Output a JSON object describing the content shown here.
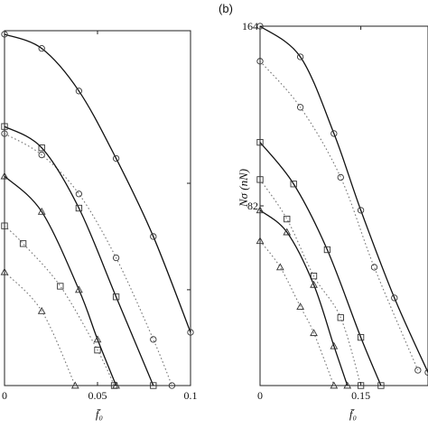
{
  "chart_data": [
    {
      "type": "line",
      "panel": "a",
      "panel_label": "",
      "xlabel": "f̄₀",
      "ylabel": "",
      "xlim": [
        0,
        0.1
      ],
      "ylim": [
        0,
        100
      ],
      "xticks": [
        0,
        0.05,
        0.1
      ],
      "xtick_labels": [
        "0",
        "0.05",
        "0.1"
      ],
      "grid": false,
      "series": [
        {
          "style": "solid",
          "marker": "circle",
          "x": [
            0,
            0.02,
            0.04,
            0.06,
            0.08,
            0.1
          ],
          "y": [
            99,
            95,
            83,
            64,
            42,
            15
          ]
        },
        {
          "style": "dotted",
          "marker": "circle",
          "x": [
            0,
            0.02,
            0.04,
            0.06,
            0.08,
            0.09
          ],
          "y": [
            71,
            65,
            54,
            36,
            13,
            0
          ]
        },
        {
          "style": "solid",
          "marker": "square",
          "x": [
            0,
            0.02,
            0.04,
            0.06,
            0.08
          ],
          "y": [
            73,
            67,
            50,
            25,
            0
          ]
        },
        {
          "style": "dotted",
          "marker": "square",
          "x": [
            0,
            0.01,
            0.03,
            0.05,
            0.059
          ],
          "y": [
            45,
            40,
            28,
            10,
            0
          ]
        },
        {
          "style": "solid",
          "marker": "triangle",
          "x": [
            0,
            0.02,
            0.04,
            0.05,
            0.06
          ],
          "y": [
            59,
            49,
            27,
            13,
            0
          ]
        },
        {
          "style": "dotted",
          "marker": "triangle",
          "x": [
            0,
            0.02,
            0.038
          ],
          "y": [
            32,
            21,
            0
          ]
        }
      ]
    },
    {
      "type": "line",
      "panel": "b",
      "panel_label": "(b)",
      "xlabel": "f̄₀",
      "ylabel": "Nσ (nN)",
      "xlim": [
        0,
        0.25
      ],
      "ylim": [
        0,
        164
      ],
      "xticks": [
        0,
        0.15
      ],
      "xtick_labels": [
        "0",
        "0.15"
      ],
      "yticks": [
        82,
        164
      ],
      "ytick_labels": [
        "82",
        "164"
      ],
      "grid": false,
      "series": [
        {
          "style": "solid",
          "marker": "circle",
          "x": [
            0,
            0.06,
            0.11,
            0.15,
            0.2,
            0.25
          ],
          "y": [
            164,
            150,
            115,
            80,
            40,
            6
          ]
        },
        {
          "style": "dotted",
          "marker": "circle",
          "x": [
            0,
            0.06,
            0.12,
            0.17,
            0.235
          ],
          "y": [
            148,
            127,
            95,
            54,
            7
          ]
        },
        {
          "style": "solid",
          "marker": "square",
          "x": [
            0,
            0.05,
            0.1,
            0.15,
            0.18
          ],
          "y": [
            111,
            92,
            62,
            22,
            0
          ]
        },
        {
          "style": "dotted",
          "marker": "square",
          "x": [
            0,
            0.04,
            0.08,
            0.12,
            0.15
          ],
          "y": [
            94,
            76,
            50,
            31,
            0
          ]
        },
        {
          "style": "solid",
          "marker": "triangle",
          "x": [
            0,
            0.04,
            0.08,
            0.11,
            0.13
          ],
          "y": [
            80,
            70,
            46,
            18,
            0
          ]
        },
        {
          "style": "dotted",
          "marker": "triangle",
          "x": [
            0,
            0.03,
            0.06,
            0.08,
            0.11
          ],
          "y": [
            66,
            54,
            36,
            24,
            0
          ]
        }
      ]
    }
  ]
}
